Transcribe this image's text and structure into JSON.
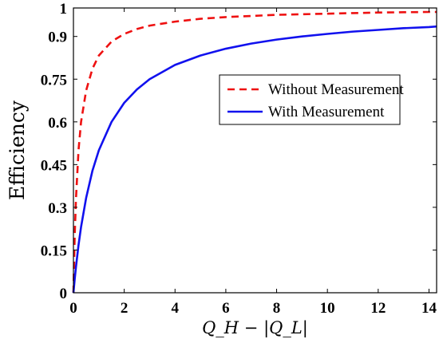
{
  "chart_data": {
    "type": "line",
    "xlabel": "Q_H − |Q_L|",
    "ylabel": "Efficiency",
    "xlim": [
      0,
      14.3
    ],
    "ylim": [
      0,
      1
    ],
    "xticks": [
      0,
      2,
      4,
      6,
      8,
      10,
      12,
      14
    ],
    "yticks": [
      0,
      0.15,
      0.3,
      0.45,
      0.6,
      0.75,
      0.9,
      1
    ],
    "ytick_labels": [
      "0",
      "0.15",
      "0.3",
      "0.45",
      "0.6",
      "0.75",
      "0.9",
      "1"
    ],
    "grid": false,
    "legend": "upper right",
    "series": [
      {
        "name": "Without Measurement",
        "color": "#ee1111",
        "style": "dashed",
        "x": [
          0,
          0.05,
          0.1,
          0.2,
          0.3,
          0.5,
          0.75,
          1,
          1.5,
          2,
          2.5,
          3,
          4,
          5,
          6,
          7,
          8,
          9,
          10,
          11,
          12,
          13,
          14,
          14.3
        ],
        "y": [
          0,
          0.2,
          0.33,
          0.5,
          0.6,
          0.71,
          0.787,
          0.833,
          0.882,
          0.909,
          0.926,
          0.938,
          0.952,
          0.962,
          0.968,
          0.972,
          0.976,
          0.978,
          0.98,
          0.982,
          0.984,
          0.985,
          0.986,
          0.986
        ]
      },
      {
        "name": "With Measurement",
        "color": "#1111ee",
        "style": "solid",
        "x": [
          0,
          0.05,
          0.1,
          0.2,
          0.3,
          0.5,
          0.75,
          1,
          1.5,
          2,
          2.5,
          3,
          4,
          5,
          6,
          7,
          8,
          9,
          10,
          11,
          12,
          13,
          14,
          14.3
        ],
        "y": [
          0,
          0.048,
          0.091,
          0.167,
          0.231,
          0.333,
          0.429,
          0.5,
          0.6,
          0.667,
          0.714,
          0.75,
          0.8,
          0.833,
          0.857,
          0.875,
          0.889,
          0.9,
          0.909,
          0.917,
          0.923,
          0.929,
          0.933,
          0.935
        ]
      }
    ]
  }
}
